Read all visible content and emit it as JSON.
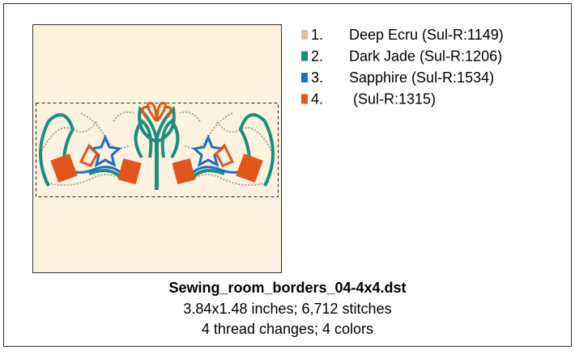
{
  "threads": [
    {
      "number": "1.",
      "name": "Deep Ecru (Sul-R:1149)",
      "color": "#d8c0aa"
    },
    {
      "number": "2.",
      "name": "Dark Jade (Sul-R:1206)",
      "color": "#1a8f7e"
    },
    {
      "number": "3.",
      "name": "Sapphire (Sul-R:1534)",
      "color": "#1f6fc4"
    },
    {
      "number": "4.",
      "name": " (Sul-R:1315)",
      "color": "#e0561a"
    }
  ],
  "file": {
    "name": "Sewing_room_borders_04-4x4.dst",
    "details": [
      "3.84x1.48 inches; 6,712 stitches",
      "4 thread changes; 4 colors"
    ]
  }
}
